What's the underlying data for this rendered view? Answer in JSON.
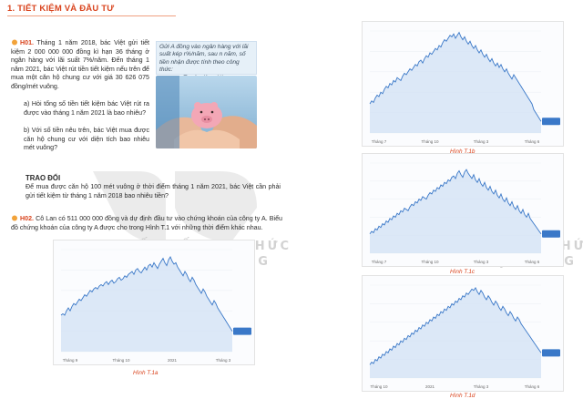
{
  "section": {
    "title": "1. TIẾT KIỆM VÀ ĐẦU TƯ"
  },
  "h01": {
    "label": "H01.",
    "intro": "Tháng 1 năm 2018, bác Việt gửi tiết kiệm 2 000 000 000 đồng kì hạn 36 tháng ở ngân hàng với lãi suất 7%/năm. Đến tháng 1 năm 2021, bác Việt rút tiền tiết kiệm nếu trên để mua một căn hộ chung cư với giá 30 626 075 đồng/mét vuông.",
    "question_a": "a) Hỏi tổng số tiền tiết kiệm bác Việt rút ra được vào tháng 1 năm 2021 là bao nhiêu?",
    "question_b": "b) Với số tiền nêu trên, bác Việt mua được căn hộ chung cư với diện tích bao nhiêu mét vuông?"
  },
  "info_box": {
    "line1": "Gửi A đồng vào ngân hàng với lãi suất kép r%/năm, sau n năm, số tiền nhận được tính theo công thức:",
    "formula": "T = A · (1 + r%)ⁿ."
  },
  "trao_doi": {
    "title": "TRAO ĐỔI",
    "text": "Để mua được căn hộ 100 mét vuông ở thời điểm tháng 1 năm 2021, bác Việt cần phải gửi tiết kiệm từ tháng 1 năm 2018 bao nhiêu tiền?"
  },
  "h02": {
    "label": "H02.",
    "text": "Cô Lan có 511 000 000 đồng và dự định đầu tư vào chứng khoán của công ty A. Biểu đồ chứng khoán của công ty A được cho trong Hình T.1 với những thời điểm khác nhau."
  },
  "watermark": {
    "line1": "KẾT NỐI TRI THỨC",
    "line2": "VỚI CUỘC SỐNG"
  },
  "colors": {
    "accent": "#d9441e",
    "line": "#3a78c8",
    "fill": "#cfe0f4"
  },
  "chart_data": [
    {
      "type": "area",
      "caption": "Hình T.1a",
      "x_labels": [
        "Tháng 9",
        "Tháng 10",
        "2021",
        "Tháng 3"
      ],
      "values": [
        55,
        56,
        55,
        58,
        60,
        58,
        61,
        63,
        62,
        64,
        66,
        65,
        67,
        69,
        68,
        70,
        72,
        71,
        73,
        74,
        73,
        75,
        76,
        75,
        77,
        78,
        76,
        78,
        79,
        77,
        78,
        80,
        81,
        79,
        80,
        82,
        81,
        83,
        84,
        85,
        83,
        86,
        87,
        85,
        84,
        86,
        88,
        86,
        89,
        90,
        88,
        91,
        89,
        87,
        90,
        92,
        94,
        91,
        89,
        93,
        95,
        92,
        90,
        91,
        88,
        86,
        84,
        82,
        85,
        83,
        80,
        78,
        81,
        79,
        76,
        74,
        72,
        70,
        73,
        71,
        68,
        66,
        64,
        62,
        65,
        63,
        60,
        58,
        56,
        54,
        52,
        50,
        48,
        46,
        44
      ]
    },
    {
      "type": "area",
      "caption": "Hình T.1b",
      "x_labels": [
        "Tháng 7",
        "Tháng 10",
        "Tháng 3",
        "Tháng 6"
      ],
      "values": [
        50,
        52,
        51,
        54,
        56,
        55,
        58,
        57,
        60,
        62,
        61,
        64,
        63,
        66,
        65,
        68,
        67,
        66,
        69,
        71,
        70,
        72,
        74,
        73,
        75,
        77,
        76,
        79,
        80,
        78,
        81,
        83,
        82,
        85,
        84,
        86,
        88,
        87,
        90,
        89,
        92,
        94,
        93,
        95,
        97,
        96,
        98,
        95,
        97,
        99,
        96,
        94,
        96,
        93,
        91,
        93,
        90,
        88,
        90,
        87,
        85,
        87,
        84,
        82,
        84,
        81,
        79,
        81,
        78,
        76,
        78,
        75,
        77,
        74,
        72,
        74,
        71,
        69,
        67,
        70,
        68,
        66,
        64,
        62,
        60,
        58,
        56,
        54,
        52,
        50,
        46,
        44,
        42,
        40,
        38
      ]
    },
    {
      "type": "area",
      "caption": "Hình T.1c",
      "x_labels": [
        "Tháng 7",
        "Tháng 10",
        "Tháng 3",
        "Tháng 6"
      ],
      "values": [
        45,
        47,
        46,
        49,
        48,
        51,
        50,
        53,
        52,
        55,
        54,
        57,
        56,
        59,
        58,
        61,
        60,
        63,
        62,
        65,
        64,
        63,
        66,
        68,
        67,
        70,
        69,
        72,
        71,
        74,
        73,
        72,
        75,
        77,
        76,
        79,
        78,
        81,
        80,
        83,
        82,
        85,
        84,
        87,
        86,
        89,
        90,
        88,
        92,
        94,
        91,
        89,
        93,
        95,
        92,
        90,
        88,
        91,
        87,
        85,
        88,
        84,
        82,
        85,
        81,
        79,
        82,
        78,
        76,
        79,
        75,
        73,
        76,
        72,
        70,
        73,
        69,
        67,
        70,
        66,
        64,
        67,
        63,
        61,
        64,
        60,
        58,
        61,
        57,
        55,
        53,
        51,
        49,
        47,
        45
      ]
    },
    {
      "type": "area",
      "caption": "Hình T.1d",
      "x_labels": [
        "Tháng 10",
        "2021",
        "Tháng 3",
        "Tháng 6"
      ],
      "values": [
        40,
        42,
        41,
        44,
        43,
        46,
        45,
        48,
        47,
        50,
        49,
        52,
        51,
        54,
        53,
        56,
        55,
        58,
        57,
        60,
        59,
        62,
        61,
        64,
        63,
        66,
        65,
        68,
        67,
        70,
        69,
        72,
        71,
        74,
        73,
        76,
        75,
        78,
        77,
        80,
        79,
        82,
        81,
        84,
        83,
        86,
        85,
        88,
        87,
        90,
        89,
        92,
        91,
        94,
        93,
        95,
        97,
        96,
        98,
        95,
        93,
        96,
        94,
        91,
        89,
        92,
        90,
        87,
        85,
        88,
        86,
        83,
        81,
        84,
        82,
        79,
        77,
        80,
        78,
        75,
        73,
        76,
        74,
        71,
        69,
        67,
        65,
        63,
        61,
        59,
        57,
        55,
        53,
        51,
        49
      ]
    }
  ]
}
